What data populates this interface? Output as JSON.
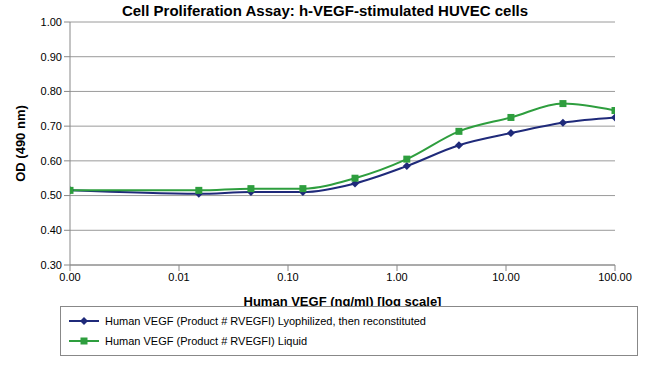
{
  "chart_data": {
    "type": "line",
    "title": "Cell Proliferation Assay: h-VEGF-stimulated HUVEC cells",
    "x_label": "Human VEGF (ng/ml) [log scale]",
    "y_label": "OD (490 nm)",
    "log": "x",
    "grid": true,
    "legend": "bottom",
    "x": [
      0.001,
      0.0152,
      0.0457,
      0.137,
      0.412,
      1.23,
      3.7,
      11.1,
      33.3,
      100
    ],
    "xlim": [
      0.001,
      100
    ],
    "xticks": [
      {
        "value": 0.001,
        "label": "0.00"
      },
      {
        "value": 0.01,
        "label": "0.01"
      },
      {
        "value": 0.1,
        "label": "0.10"
      },
      {
        "value": 1,
        "label": "1.00"
      },
      {
        "value": 10,
        "label": "10.00"
      },
      {
        "value": 100,
        "label": "100.00"
      }
    ],
    "ylim": [
      0.3,
      1
    ],
    "yticks": [
      {
        "value": 0.3,
        "label": "0.30"
      },
      {
        "value": 0.4,
        "label": "0.40"
      },
      {
        "value": 0.5,
        "label": "0.50"
      },
      {
        "value": 0.6,
        "label": "0.60"
      },
      {
        "value": 0.7,
        "label": "0.70"
      },
      {
        "value": 0.8,
        "label": "0.80"
      },
      {
        "value": 0.9,
        "label": "0.90"
      },
      {
        "value": 1,
        "label": "1.00"
      }
    ],
    "series": [
      {
        "name": "Human VEGF (Product # RVEGFI) Lyophilized, then reconstituted",
        "color": "#1f2a7a",
        "marker": "diamond",
        "values": [
          0.515,
          0.505,
          0.51,
          0.51,
          0.535,
          0.585,
          0.645,
          0.68,
          0.71,
          0.725
        ]
      },
      {
        "name": "Human VEGF (Product # RVEGFI) Liquid",
        "color": "#2e9e3e",
        "marker": "square",
        "values": [
          0.515,
          0.515,
          0.52,
          0.52,
          0.55,
          0.605,
          0.685,
          0.725,
          0.765,
          0.745
        ]
      }
    ]
  }
}
